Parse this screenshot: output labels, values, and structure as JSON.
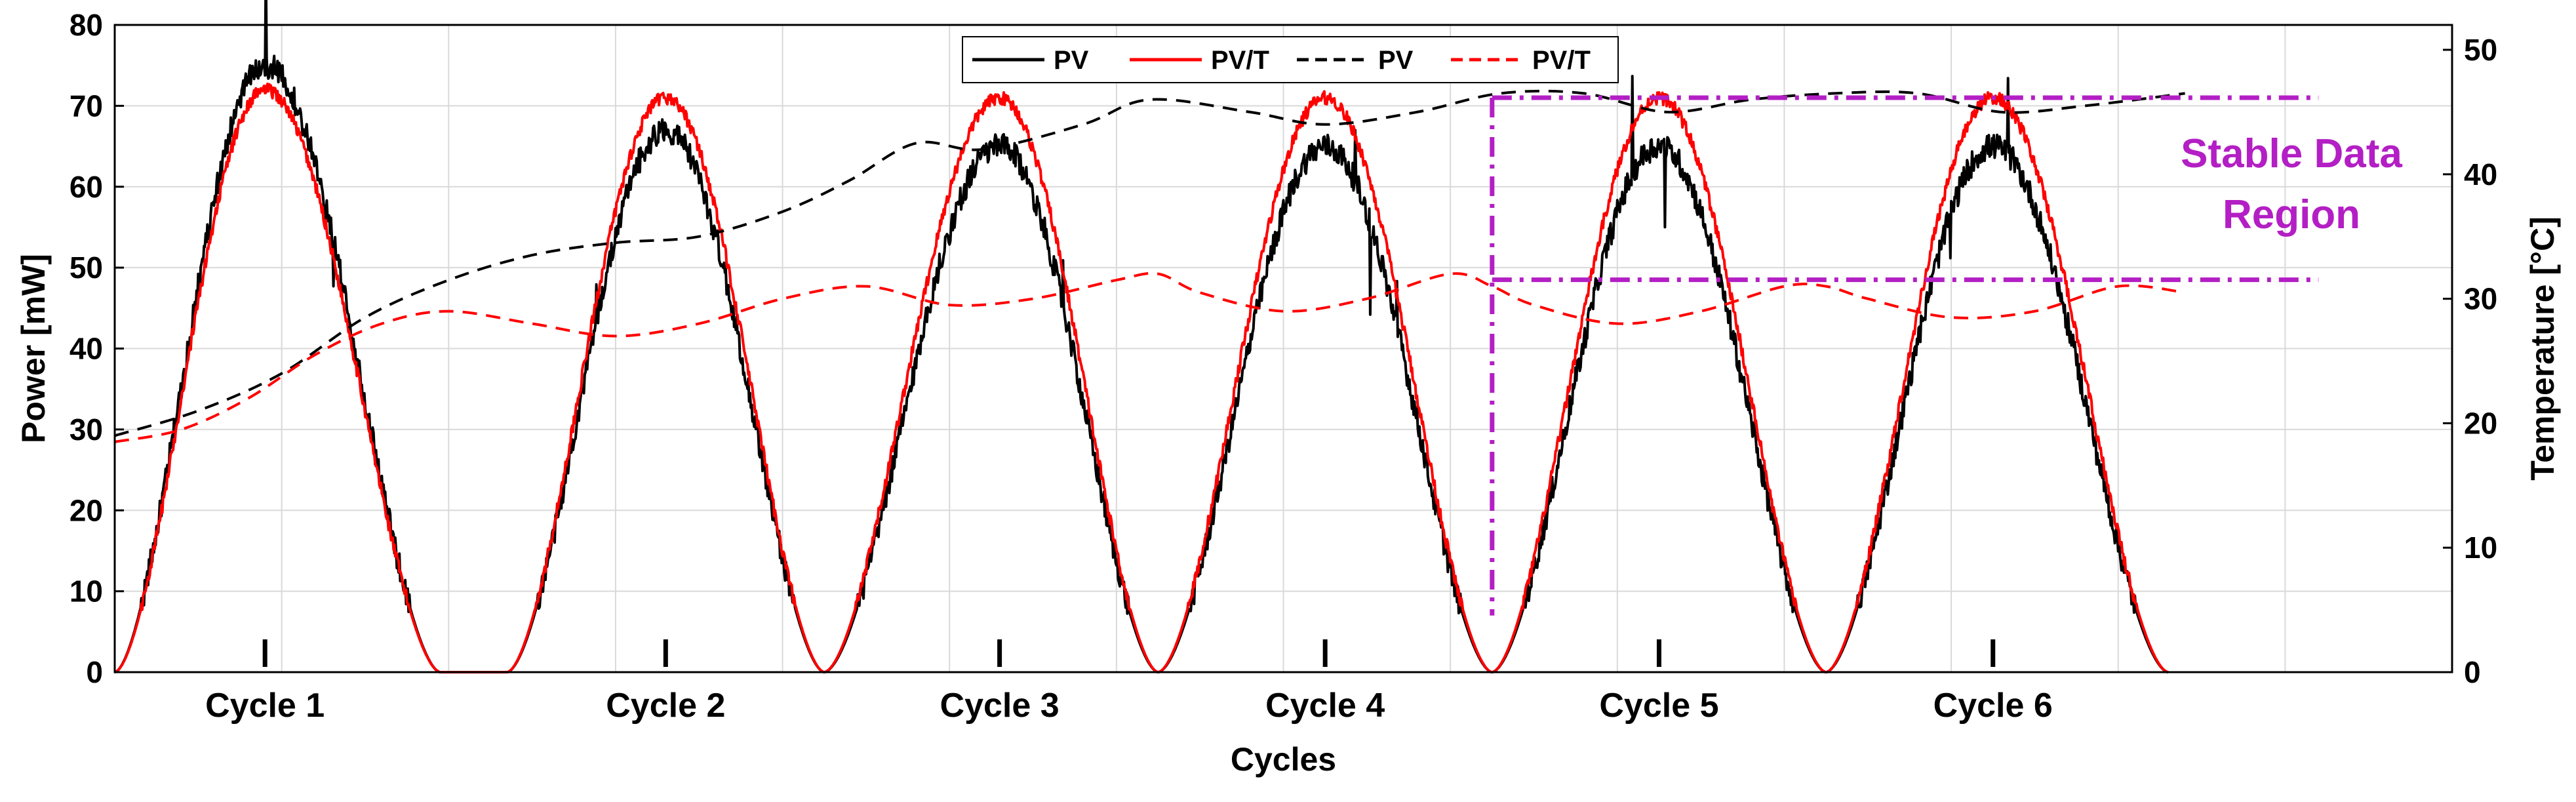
{
  "chart_data": {
    "type": "line",
    "title": "",
    "xlabel": "Cycles",
    "ylabel_left": "Power [mW]",
    "ylabel_right": "Temperature [°C]",
    "xlim": [
      0,
      1400
    ],
    "ylim_left": [
      0,
      80
    ],
    "ylim_right": [
      0,
      52
    ],
    "yticks_left": [
      0,
      10,
      20,
      30,
      40,
      50,
      60,
      70,
      80
    ],
    "yticks_right": [
      0,
      10,
      20,
      30,
      40,
      50
    ],
    "grid": true,
    "cycle_ticks": [
      {
        "label": "Cycle 1",
        "x": 90
      },
      {
        "label": "Cycle 2",
        "x": 330
      },
      {
        "label": "Cycle 3",
        "x": 530
      },
      {
        "label": "Cycle 4",
        "x": 725
      },
      {
        "label": "Cycle 5",
        "x": 925
      },
      {
        "label": "Cycle 6",
        "x": 1125
      }
    ],
    "power_cycles": [
      {
        "start": 0,
        "peak": 90,
        "end": 195,
        "pv_peak": 75,
        "pvt_peak": 72
      },
      {
        "start": 235,
        "peak": 330,
        "end": 425,
        "pv_peak": 67,
        "pvt_peak": 71
      },
      {
        "start": 425,
        "peak": 530,
        "end": 625,
        "pv_peak": 65,
        "pvt_peak": 71
      },
      {
        "start": 625,
        "peak": 725,
        "end": 825,
        "pv_peak": 65,
        "pvt_peak": 71
      },
      {
        "start": 825,
        "peak": 925,
        "end": 1025,
        "pv_peak": 65,
        "pvt_peak": 71
      },
      {
        "start": 1025,
        "peak": 1125,
        "end": 1230,
        "pv_peak": 65,
        "pvt_peak": 71
      }
    ],
    "series": [
      {
        "name": "PV",
        "axis": "left",
        "style": "solid",
        "color": "#000000",
        "summary": "power output, peaks approx 75, 67, 65, 65, 65, 65 mW"
      },
      {
        "name": "PV/T",
        "axis": "left",
        "style": "solid",
        "color": "#ff0000",
        "summary": "power output, peaks approx 72, 71, 71, 71, 71, 71 mW"
      },
      {
        "name": "PV",
        "axis": "right",
        "style": "dashed",
        "color": "#000000",
        "x": [
          0,
          50,
          100,
          150,
          200,
          250,
          300,
          350,
          400,
          440,
          480,
          520,
          580,
          620,
          680,
          725,
          780,
          830,
          880,
          930,
          980,
          1030,
          1080,
          1130,
          1180,
          1240
        ],
        "y": [
          19,
          21,
          24,
          28.5,
          31.5,
          33.5,
          34.5,
          35,
          37,
          39.5,
          42.5,
          42,
          44,
          46,
          45,
          44,
          45,
          46.5,
          46.5,
          45,
          46,
          46.5,
          46.5,
          45,
          45.5,
          46.5
        ]
      },
      {
        "name": "PV/T",
        "axis": "right",
        "style": "dashed",
        "color": "#ff0000",
        "x": [
          0,
          40,
          80,
          120,
          160,
          200,
          250,
          300,
          350,
          400,
          450,
          500,
          550,
          600,
          625,
          650,
          700,
          750,
          800,
          825,
          850,
          900,
          950,
          1000,
          1025,
          1050,
          1100,
          1150,
          1200,
          1240
        ],
        "y": [
          18.5,
          19.5,
          22,
          25.5,
          28,
          29,
          28,
          27,
          28,
          30,
          31,
          29.5,
          30,
          31.5,
          32,
          30.5,
          29,
          30,
          32,
          31,
          29.5,
          28,
          29,
          31,
          31,
          30,
          28.5,
          29,
          31,
          30.5
        ]
      }
    ],
    "legend": {
      "position": "top-center",
      "entries": [
        {
          "label": "PV",
          "color": "#000000",
          "style": "solid"
        },
        {
          "label": "PV/T",
          "color": "#ff0000",
          "style": "solid"
        },
        {
          "label": "PV",
          "color": "#000000",
          "style": "dashed"
        },
        {
          "label": "PV/T",
          "color": "#ff0000",
          "style": "dashed"
        }
      ]
    },
    "annotation": {
      "lines": [
        "Stable Data",
        "Region"
      ],
      "color": "#b31fc4",
      "x_start": 825,
      "x_end": 1320,
      "y_top": 71,
      "y_bottom": 48.5,
      "y_stem_bottom": 7
    }
  }
}
